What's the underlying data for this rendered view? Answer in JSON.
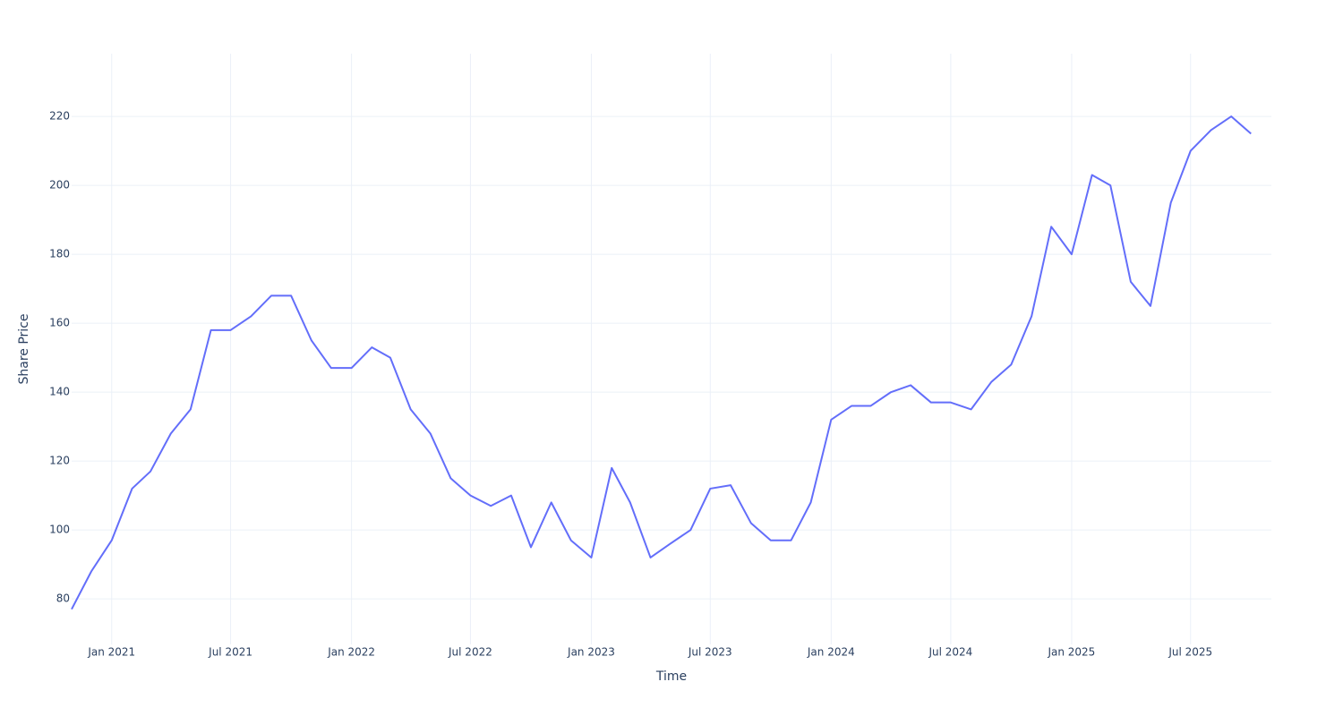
{
  "chart_data": {
    "type": "line",
    "x_label": "Time",
    "y_label": "Share Price",
    "x": [
      "2020-11",
      "2020-12",
      "2021-01",
      "2021-02",
      "2021-03",
      "2021-04",
      "2021-05",
      "2021-06",
      "2021-07",
      "2021-08",
      "2021-09",
      "2021-10",
      "2021-11",
      "2021-12",
      "2022-01",
      "2022-02",
      "2022-03",
      "2022-04",
      "2022-05",
      "2022-06",
      "2022-07",
      "2022-08",
      "2022-09",
      "2022-10",
      "2022-11",
      "2022-12",
      "2023-01",
      "2023-02",
      "2023-03",
      "2023-04",
      "2023-05",
      "2023-06",
      "2023-07",
      "2023-08",
      "2023-09",
      "2023-10",
      "2023-11",
      "2023-12",
      "2024-01",
      "2024-02",
      "2024-03",
      "2024-04",
      "2024-05",
      "2024-06",
      "2024-07",
      "2024-08",
      "2024-09",
      "2024-10",
      "2024-11",
      "2024-12",
      "2025-01",
      "2025-02",
      "2025-03",
      "2025-04",
      "2025-05",
      "2025-06",
      "2025-07",
      "2025-08",
      "2025-09",
      "2025-10"
    ],
    "series": [
      {
        "name": "Share Price",
        "color": "#636efa",
        "values": [
          77,
          88,
          97,
          112,
          117,
          128,
          135,
          158,
          158,
          162,
          168,
          168,
          155,
          147,
          147,
          153,
          150,
          135,
          128,
          115,
          110,
          107,
          110,
          95,
          108,
          97,
          92,
          118,
          108,
          92,
          96,
          100,
          112,
          113,
          102,
          97,
          97,
          108,
          132,
          136,
          136,
          140,
          142,
          137,
          137,
          135,
          143,
          148,
          162,
          188,
          180,
          203,
          200,
          172,
          165,
          195,
          210,
          216,
          220,
          215
        ]
      }
    ],
    "xlim": [
      "2020-11",
      "2025-11"
    ],
    "xticks": [
      {
        "value": "2021-01",
        "label": "Jan 2021"
      },
      {
        "value": "2021-07",
        "label": "Jul 2021"
      },
      {
        "value": "2022-01",
        "label": "Jan 2022"
      },
      {
        "value": "2022-07",
        "label": "Jul 2022"
      },
      {
        "value": "2023-01",
        "label": "Jan 2023"
      },
      {
        "value": "2023-07",
        "label": "Jul 2023"
      },
      {
        "value": "2024-01",
        "label": "Jan 2024"
      },
      {
        "value": "2024-07",
        "label": "Jul 2024"
      },
      {
        "value": "2025-01",
        "label": "Jan 2025"
      },
      {
        "value": "2025-07",
        "label": "Jul 2025"
      }
    ],
    "ylim": [
      66.8,
      238.2
    ],
    "yticks": [
      80,
      100,
      120,
      140,
      160,
      180,
      200,
      220
    ],
    "grid": true
  }
}
